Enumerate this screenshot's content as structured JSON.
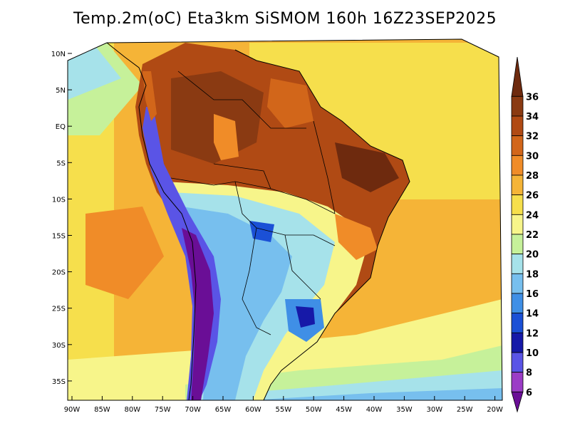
{
  "title": "Temp.2m(oC) Eta3km SiSMOM 160h 16Z23SEP2025",
  "map": {
    "lat_ticks": [
      "10N",
      "5N",
      "EQ",
      "5S",
      "10S",
      "15S",
      "20S",
      "25S",
      "30S",
      "35S"
    ],
    "lon_ticks": [
      "90W",
      "85W",
      "80W",
      "75W",
      "70W",
      "65W",
      "60W",
      "55W",
      "50W",
      "45W",
      "40W",
      "35W",
      "30W",
      "25W",
      "20W"
    ]
  },
  "colorbar": {
    "labels": [
      "36",
      "34",
      "32",
      "30",
      "28",
      "26",
      "24",
      "22",
      "20",
      "18",
      "16",
      "14",
      "12",
      "10",
      "8",
      "6"
    ],
    "colors": [
      "#6e2a0e",
      "#8a3a12",
      "#b04a14",
      "#d2661a",
      "#f08c28",
      "#f5b437",
      "#f6df4c",
      "#f7f58a",
      "#c6f19a",
      "#a6e2ea",
      "#77bfee",
      "#3f8fe6",
      "#1b50d6",
      "#1619a8",
      "#5a54e6",
      "#9b3cc6",
      "#6a0e96"
    ]
  }
}
